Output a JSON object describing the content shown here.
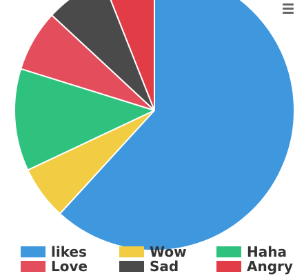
{
  "chart_data": {
    "type": "pie",
    "title": "",
    "slices": [
      {
        "label": "likes",
        "value": 61.8,
        "color": "#3f97de"
      },
      {
        "label": "Wow",
        "value": 6.2,
        "color": "#f2cd44"
      },
      {
        "label": "Haha",
        "value": 11.8,
        "color": "#2ec27e"
      },
      {
        "label": "Love",
        "value": 7.1,
        "color": "#e44e5c"
      },
      {
        "label": "Sad",
        "value": 7.1,
        "color": "#4a4a4a"
      },
      {
        "label": "Angry",
        "value": 6.0,
        "color": "#e23c47"
      }
    ],
    "legend": {
      "position": "bottom",
      "columns": 3
    }
  },
  "toolbar": {
    "menu_icon": "hamburger-menu-icon"
  }
}
